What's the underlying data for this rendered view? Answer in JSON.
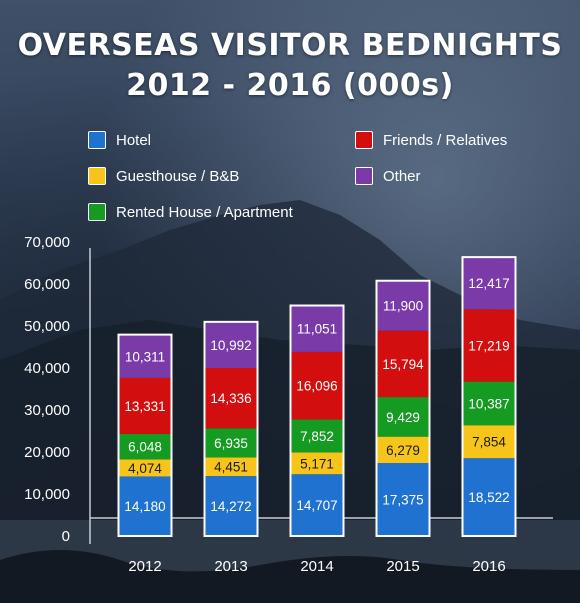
{
  "chart_data": {
    "type": "bar",
    "stacked": true,
    "title": "OVERSEAS VISITOR BEDNIGHTS",
    "subtitle": "2012 - 2016 (000s)",
    "categories": [
      "2012",
      "2013",
      "2014",
      "2015",
      "2016"
    ],
    "series": [
      {
        "name": "Hotel",
        "color": "#1f72d0",
        "values": [
          14180,
          14272,
          14707,
          17375,
          18522
        ]
      },
      {
        "name": "Guesthouse / B&B",
        "color": "#f7c51a",
        "values": [
          4074,
          4451,
          5171,
          6279,
          7854
        ]
      },
      {
        "name": "Rented House / Apartment",
        "color": "#159a22",
        "values": [
          6048,
          6935,
          7852,
          9429,
          10387
        ]
      },
      {
        "name": "Friends / Relatives",
        "color": "#d20e0e",
        "values": [
          13331,
          14336,
          16096,
          15794,
          17219
        ]
      },
      {
        "name": "Other",
        "color": "#7a3aa8",
        "values": [
          10311,
          10992,
          11051,
          11900,
          12417
        ]
      }
    ],
    "value_labels": [
      [
        "14,180",
        "14,272",
        "14,707",
        "17,375",
        "18,522"
      ],
      [
        "4,074",
        "4,451",
        "5,171",
        "6,279",
        "7,854"
      ],
      [
        "6,048",
        "6,935",
        "7,852",
        "9,429",
        "10,387"
      ],
      [
        "13,331",
        "14,336",
        "16,096",
        "15,794",
        "17,219"
      ],
      [
        "10,311",
        "10,992",
        "11,051",
        "11,900",
        "12,417"
      ]
    ],
    "y_ticks": [
      "0",
      "10,000",
      "20,000",
      "30,000",
      "40,000",
      "50,000",
      "60,000",
      "70,000"
    ],
    "ylim": [
      0,
      70000
    ],
    "grid": false,
    "legend_position": "top"
  }
}
